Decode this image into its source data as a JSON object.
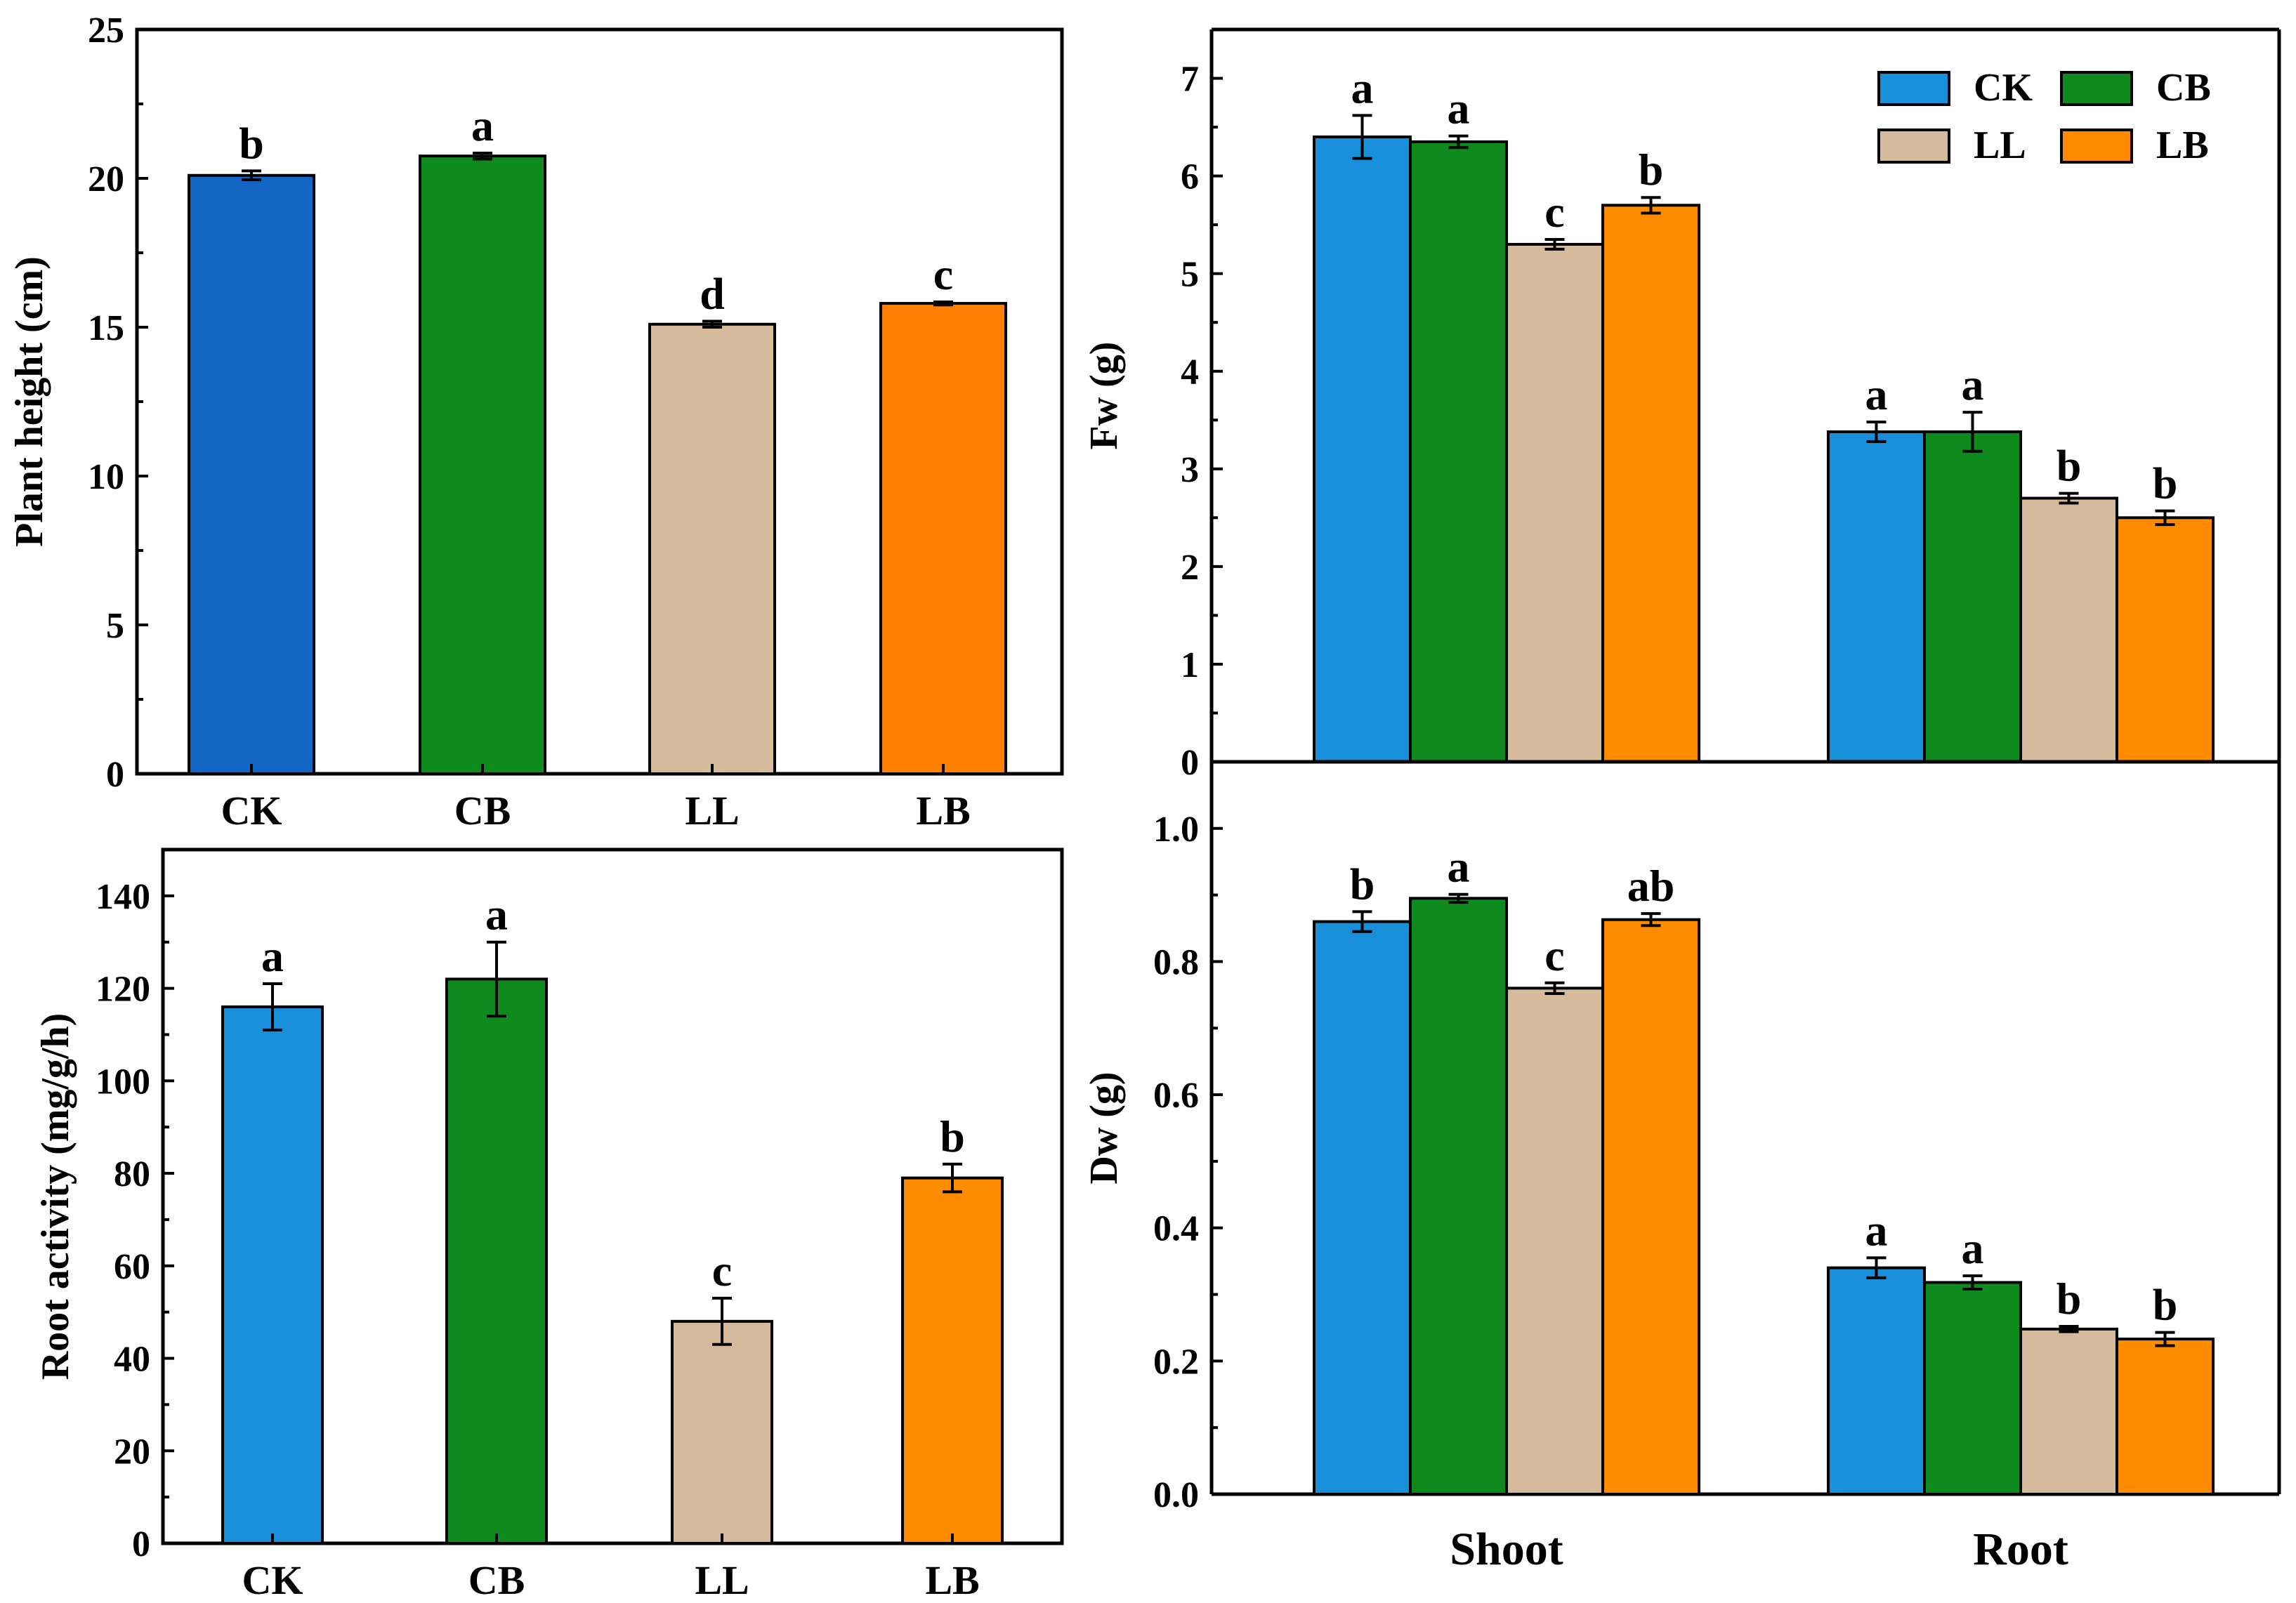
{
  "colors": {
    "CK": "#1a8fd9",
    "CB": "#0f8a1c",
    "LL": "#d5bb9b",
    "LB": "#ff8c00",
    "CK_dark": "#1466c6",
    "LB_dark": "#ff7f00"
  },
  "chart_data": [
    {
      "id": "plant-height",
      "type": "bar",
      "categories": [
        "CK",
        "CB",
        "LL",
        "LB"
      ],
      "values": [
        20.1,
        20.75,
        15.1,
        15.8
      ],
      "errors": [
        0.15,
        0.1,
        0.1,
        0.05
      ],
      "significance": [
        "b",
        "a",
        "d",
        "c"
      ],
      "ylabel": "Plant height (cm)",
      "xlabel": "",
      "ylim": [
        0,
        25
      ],
      "yticks": [
        "0",
        "5",
        "10",
        "15",
        "20",
        "25"
      ]
    },
    {
      "id": "root-activity",
      "type": "bar",
      "categories": [
        "CK",
        "CB",
        "LL",
        "LB"
      ],
      "values": [
        116,
        122,
        48,
        79
      ],
      "errors": [
        5,
        8,
        5,
        3
      ],
      "significance": [
        "a",
        "a",
        "c",
        "b"
      ],
      "ylabel": "Root activity (mg/g/h)",
      "xlabel": "",
      "ylim": [
        0,
        150
      ],
      "yticks": [
        "0",
        "20",
        "40",
        "60",
        "80",
        "100",
        "120",
        "140"
      ]
    },
    {
      "id": "fresh-weight",
      "type": "bar",
      "groups": [
        "Shoot",
        "Root"
      ],
      "series": [
        {
          "name": "CK",
          "values": [
            6.4,
            3.38
          ],
          "errors": [
            0.22,
            0.1
          ],
          "significance": [
            "a",
            "a"
          ]
        },
        {
          "name": "CB",
          "values": [
            6.35,
            3.38
          ],
          "errors": [
            0.06,
            0.2
          ],
          "significance": [
            "a",
            "a"
          ]
        },
        {
          "name": "LL",
          "values": [
            5.3,
            2.7
          ],
          "errors": [
            0.05,
            0.05
          ],
          "significance": [
            "c",
            "b"
          ]
        },
        {
          "name": "LB",
          "values": [
            5.7,
            2.5
          ],
          "errors": [
            0.08,
            0.07
          ],
          "significance": [
            "b",
            "b"
          ]
        }
      ],
      "ylabel": "Fw (g)",
      "xlabel": "",
      "ylim": [
        0,
        7.5
      ],
      "yticks": [
        "0",
        "1",
        "2",
        "3",
        "4",
        "5",
        "6",
        "7"
      ],
      "legend": [
        "CK",
        "CB",
        "LL",
        "LB"
      ],
      "legend_position": "top-right"
    },
    {
      "id": "dry-weight",
      "type": "bar",
      "groups": [
        "Shoot",
        "Root"
      ],
      "series": [
        {
          "name": "CK",
          "values": [
            0.86,
            0.34
          ],
          "errors": [
            0.015,
            0.015
          ],
          "significance": [
            "b",
            "a"
          ]
        },
        {
          "name": "CB",
          "values": [
            0.895,
            0.318
          ],
          "errors": [
            0.006,
            0.01
          ],
          "significance": [
            "a",
            "a"
          ]
        },
        {
          "name": "LL",
          "values": [
            0.76,
            0.248
          ],
          "errors": [
            0.008,
            0.004
          ],
          "significance": [
            "c",
            "b"
          ]
        },
        {
          "name": "LB",
          "values": [
            0.863,
            0.233
          ],
          "errors": [
            0.009,
            0.01
          ],
          "significance": [
            "ab",
            "b"
          ]
        }
      ],
      "ylabel": "Dw (g)",
      "xlabel": "",
      "ylim": [
        0,
        1.1
      ],
      "yticks": [
        "0.0",
        "0.2",
        "0.4",
        "0.6",
        "0.8",
        "1.0"
      ]
    }
  ]
}
